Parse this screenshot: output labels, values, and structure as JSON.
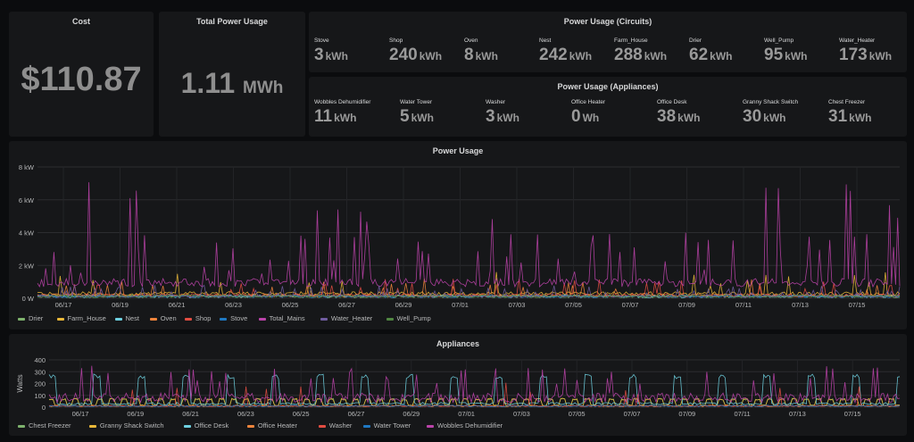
{
  "panels": {
    "cost": {
      "title": "Cost",
      "value": "$110.87"
    },
    "total": {
      "title": "Total Power Usage",
      "value": "1.11",
      "unit": "MWh"
    },
    "circuits": {
      "title": "Power Usage (Circuits)",
      "items": [
        {
          "name": "Stove",
          "value": "3",
          "unit": "kWh"
        },
        {
          "name": "Shop",
          "value": "240",
          "unit": "kWh"
        },
        {
          "name": "Oven",
          "value": "8",
          "unit": "kWh"
        },
        {
          "name": "Nest",
          "value": "242",
          "unit": "kWh"
        },
        {
          "name": "Farm_House",
          "value": "288",
          "unit": "kWh"
        },
        {
          "name": "Drier",
          "value": "62",
          "unit": "kWh"
        },
        {
          "name": "Well_Pump",
          "value": "95",
          "unit": "kWh"
        },
        {
          "name": "Water_Heater",
          "value": "173",
          "unit": "kWh"
        }
      ]
    },
    "appliances_stats": {
      "title": "Power Usage (Appliances)",
      "items": [
        {
          "name": "Wobbles Dehumidifier",
          "value": "11",
          "unit": "kWh"
        },
        {
          "name": "Water Tower",
          "value": "5",
          "unit": "kWh"
        },
        {
          "name": "Washer",
          "value": "3",
          "unit": "kWh"
        },
        {
          "name": "Office Heater",
          "value": "0",
          "unit": "Wh"
        },
        {
          "name": "Office Desk",
          "value": "38",
          "unit": "kWh"
        },
        {
          "name": "Granny Shack Switch",
          "value": "30",
          "unit": "kWh"
        },
        {
          "name": "Chest Freezer",
          "value": "31",
          "unit": "kWh"
        }
      ]
    }
  },
  "chart_data": [
    {
      "type": "line",
      "title": "Power Usage",
      "yticks": [
        "0 W",
        "2 kW",
        "4 kW",
        "6 kW",
        "8 kW"
      ],
      "ylim": [
        0,
        8000
      ],
      "xticks": [
        "06/17",
        "06/19",
        "06/21",
        "06/23",
        "06/25",
        "06/27",
        "06/29",
        "07/01",
        "07/03",
        "07/05",
        "07/07",
        "07/09",
        "07/11",
        "07/13",
        "07/15"
      ],
      "grid": true,
      "legend_position": "bottom",
      "series": [
        {
          "name": "Drier",
          "color": "#7eb26d"
        },
        {
          "name": "Farm_House",
          "color": "#eab839"
        },
        {
          "name": "Nest",
          "color": "#6ed0e0"
        },
        {
          "name": "Oven",
          "color": "#ef843c"
        },
        {
          "name": "Shop",
          "color": "#e24d42"
        },
        {
          "name": "Stove",
          "color": "#1f78c1"
        },
        {
          "name": "Total_Mains",
          "color": "#ba43a9"
        },
        {
          "name": "Water_Heater",
          "color": "#705da0"
        },
        {
          "name": "Well_Pump",
          "color": "#508642"
        }
      ]
    },
    {
      "type": "line",
      "title": "Appliances",
      "ylabel": "Watts",
      "yticks": [
        "0",
        "100",
        "200",
        "300",
        "400"
      ],
      "ylim": [
        0,
        400
      ],
      "xticks": [
        "06/17",
        "06/19",
        "06/21",
        "06/23",
        "06/25",
        "06/27",
        "06/29",
        "07/01",
        "07/03",
        "07/05",
        "07/07",
        "07/09",
        "07/11",
        "07/13",
        "07/15"
      ],
      "grid": true,
      "legend_position": "bottom",
      "series": [
        {
          "name": "Chest Freezer",
          "color": "#7eb26d"
        },
        {
          "name": "Granny Shack Switch",
          "color": "#eab839"
        },
        {
          "name": "Office Desk",
          "color": "#6ed0e0"
        },
        {
          "name": "Office Heater",
          "color": "#ef843c"
        },
        {
          "name": "Washer",
          "color": "#e24d42"
        },
        {
          "name": "Water Tower",
          "color": "#1f78c1"
        },
        {
          "name": "Wobbles Dehumidifier",
          "color": "#ba43a9"
        }
      ]
    }
  ]
}
